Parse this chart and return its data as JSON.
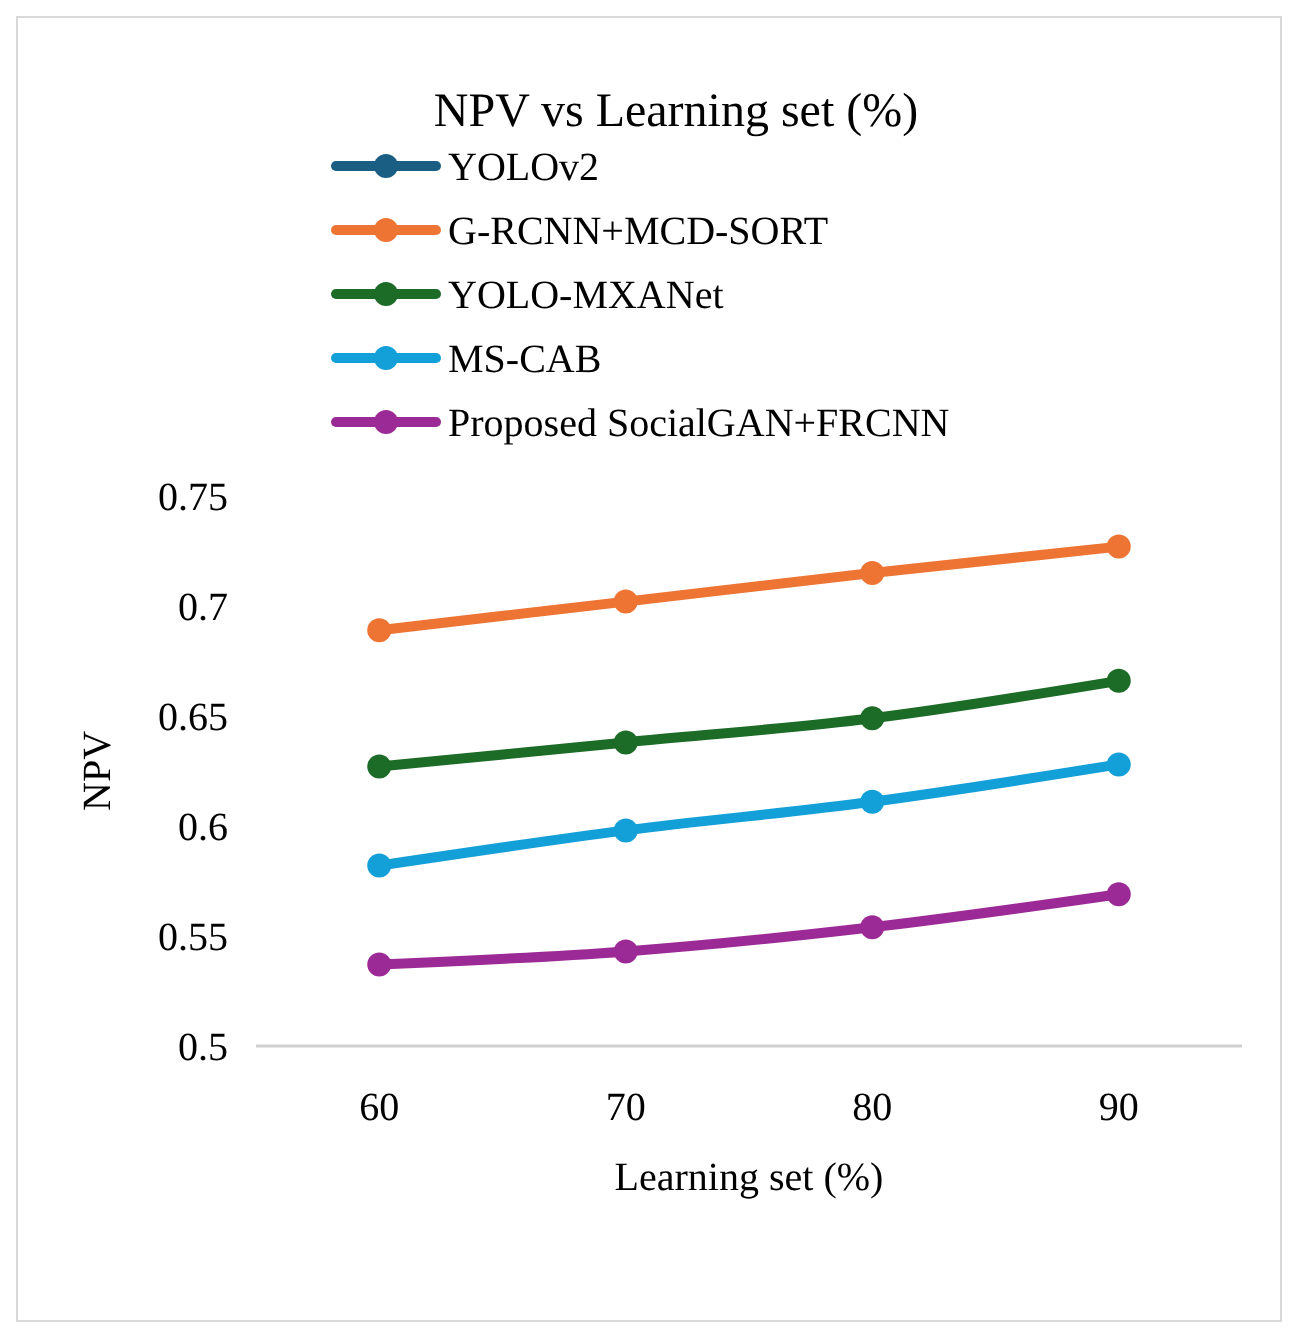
{
  "chart_data": {
    "type": "line",
    "title": "NPV vs Learning  set (%)",
    "xlabel": "Learning set (%)",
    "ylabel": "NPV",
    "categories": [
      "60",
      "70",
      "80",
      "90"
    ],
    "ylim": [
      0.5,
      0.75
    ],
    "yticks": [
      0.5,
      0.55,
      0.6,
      0.65,
      0.7,
      0.75
    ],
    "grid": false,
    "legend": "top",
    "marker": "circle",
    "line_style": "solid",
    "series": [
      {
        "name": "YOLOv2",
        "color": "#1b5e84",
        "values": [
          null,
          null,
          null,
          null
        ]
      },
      {
        "name": "G-RCNN+MCD-SORT",
        "color": "#ed7432",
        "values": [
          0.689,
          0.702,
          0.715,
          0.727
        ]
      },
      {
        "name": "YOLO-MXANet",
        "color": "#1c6b27",
        "values": [
          0.627,
          0.638,
          0.649,
          0.666
        ]
      },
      {
        "name": "MS-CAB",
        "color": "#139fd8",
        "values": [
          0.582,
          0.598,
          0.611,
          0.628
        ]
      },
      {
        "name": "Proposed SocialGAN+FRCNN",
        "color": "#9c2a96",
        "values": [
          0.537,
          0.543,
          0.554,
          0.569
        ]
      }
    ]
  }
}
